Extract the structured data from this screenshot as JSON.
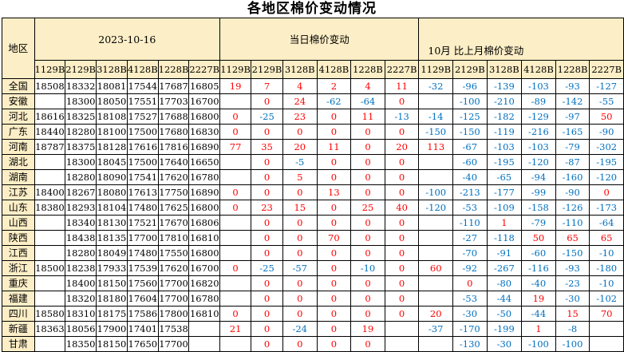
{
  "colors": {
    "header_bg": "#FCEEC6",
    "positive_change": "#FF0000",
    "negative_change": "#0070C0",
    "border": "#000000",
    "price_text": "#000000"
  },
  "chart_data": {
    "type": "table",
    "title": "各地区棉价变动情况",
    "region_header": "地区",
    "column_groups": [
      "2023-10-16",
      "当日棉价变动",
      "10月 比上月棉价变动"
    ],
    "grade_columns": [
      "1129B",
      "2129B",
      "3128B",
      "4128B",
      "1228B",
      "2227B"
    ],
    "rows": [
      {
        "region": "全国",
        "prices": [
          "18508",
          "18332",
          "18081",
          "17544",
          "17687",
          "16805"
        ],
        "daily": [
          "19",
          "7",
          "4",
          "2",
          "4",
          "11"
        ],
        "monthly": [
          "-32",
          "-96",
          "-139",
          "-103",
          "-93",
          "-127"
        ]
      },
      {
        "region": "安徽",
        "prices": [
          "",
          "18300",
          "18050",
          "17551",
          "17703",
          "16700"
        ],
        "daily": [
          "",
          "0",
          "24",
          "-62",
          "-64",
          "0"
        ],
        "monthly": [
          "",
          "-100",
          "-210",
          "-89",
          "-142",
          "-55"
        ]
      },
      {
        "region": "河北",
        "prices": [
          "18616",
          "18325",
          "18108",
          "17527",
          "17688",
          "16800"
        ],
        "daily": [
          "0",
          "-25",
          "23",
          "0",
          "11",
          "-13"
        ],
        "monthly": [
          "-14",
          "-125",
          "-182",
          "-129",
          "-97",
          "50"
        ]
      },
      {
        "region": "广东",
        "prices": [
          "18440",
          "18280",
          "18100",
          "17500",
          "17680",
          "16830"
        ],
        "daily": [
          "0",
          "0",
          "0",
          "0",
          "0",
          "0"
        ],
        "monthly": [
          "-150",
          "-150",
          "-119",
          "-216",
          "-165",
          "-90"
        ]
      },
      {
        "region": "河南",
        "prices": [
          "18787",
          "18375",
          "18128",
          "17616",
          "17816",
          "16890"
        ],
        "daily": [
          "77",
          "35",
          "20",
          "11",
          "0",
          "20"
        ],
        "monthly": [
          "113",
          "-67",
          "-103",
          "-103",
          "-79",
          "-302"
        ]
      },
      {
        "region": "湖北",
        "prices": [
          "",
          "18300",
          "18045",
          "17500",
          "17640",
          "16650"
        ],
        "daily": [
          "",
          "0",
          "-5",
          "0",
          "0",
          "0"
        ],
        "monthly": [
          "",
          "-60",
          "-195",
          "-120",
          "-87",
          "-195"
        ]
      },
      {
        "region": "湖南",
        "prices": [
          "",
          "18280",
          "18090",
          "17541",
          "17620",
          "16780"
        ],
        "daily": [
          "",
          "0",
          "5",
          "0",
          "0",
          "0"
        ],
        "monthly": [
          "",
          "-40",
          "-65",
          "-94",
          "-160",
          "-120"
        ]
      },
      {
        "region": "江苏",
        "prices": [
          "18400",
          "18267",
          "18080",
          "17613",
          "17750",
          "16890"
        ],
        "daily": [
          "0",
          "0",
          "0",
          "13",
          "0",
          "0"
        ],
        "monthly": [
          "-100",
          "-213",
          "-177",
          "-99",
          "-90",
          "0"
        ]
      },
      {
        "region": "山东",
        "prices": [
          "18380",
          "18293",
          "18104",
          "17480",
          "17625",
          "16800"
        ],
        "daily": [
          "0",
          "23",
          "15",
          "0",
          "25",
          "40"
        ],
        "monthly": [
          "-120",
          "-53",
          "-109",
          "-158",
          "-126",
          "-173"
        ]
      },
      {
        "region": "山西",
        "prices": [
          "",
          "18340",
          "18130",
          "17521",
          "17670",
          "16806"
        ],
        "daily": [
          "",
          "0",
          "0",
          "0",
          "0",
          "0"
        ],
        "monthly": [
          "",
          "-110",
          "1",
          "-79",
          "-110",
          "-64"
        ]
      },
      {
        "region": "陕西",
        "prices": [
          "",
          "18438",
          "18135",
          "17700",
          "17810",
          "16810"
        ],
        "daily": [
          "",
          "0",
          "0",
          "70",
          "0",
          "0"
        ],
        "monthly": [
          "",
          "-27",
          "-118",
          "50",
          "65",
          "65"
        ]
      },
      {
        "region": "江西",
        "prices": [
          "",
          "18280",
          "18049",
          "17480",
          "17550",
          "16800"
        ],
        "daily": [
          "",
          "0",
          "0",
          "0",
          "0",
          "0"
        ],
        "monthly": [
          "",
          "-70",
          "-91",
          "-60",
          "-150",
          "-10"
        ]
      },
      {
        "region": "浙江",
        "prices": [
          "18500",
          "18238",
          "17933",
          "17539",
          "17620",
          "16700"
        ],
        "daily": [
          "0",
          "-25",
          "-57",
          "0",
          "-10",
          "0"
        ],
        "monthly": [
          "60",
          "-92",
          "-267",
          "-116",
          "-93",
          "-180"
        ]
      },
      {
        "region": "重庆",
        "prices": [
          "",
          "18400",
          "18150",
          "17560",
          "17700",
          "16820"
        ],
        "daily": [
          "",
          "0",
          "0",
          "0",
          "0",
          "0"
        ],
        "monthly": [
          "",
          "0",
          "-80",
          "-40",
          "-23",
          "-10"
        ]
      },
      {
        "region": "福建",
        "prices": [
          "",
          "18320",
          "18180",
          "17604",
          "17700",
          "16780"
        ],
        "daily": [
          "",
          "0",
          "0",
          "0",
          "0",
          "0"
        ],
        "monthly": [
          "",
          "-53",
          "-44",
          "19",
          "-30",
          "-102"
        ]
      },
      {
        "region": "四川",
        "prices": [
          "18580",
          "18310",
          "18175",
          "17586",
          "17800",
          "16810"
        ],
        "daily": [
          "0",
          "0",
          "0",
          "0",
          "0",
          "0"
        ],
        "monthly": [
          "20",
          "-30",
          "-50",
          "-44",
          "15",
          "70"
        ]
      },
      {
        "region": "新疆",
        "prices": [
          "18363",
          "18056",
          "17900",
          "17401",
          "17538",
          ""
        ],
        "daily": [
          "21",
          "0",
          "-24",
          "0",
          "19",
          ""
        ],
        "monthly": [
          "-37",
          "-170",
          "-199",
          "1",
          "-8",
          ""
        ]
      },
      {
        "region": "甘肃",
        "prices": [
          "",
          "18350",
          "18150",
          "17650",
          "17700",
          ""
        ],
        "daily": [
          "",
          "0",
          "0",
          "0",
          "0",
          ""
        ],
        "monthly": [
          "",
          "-130",
          "-30",
          "-100",
          "-100",
          ""
        ]
      }
    ]
  }
}
